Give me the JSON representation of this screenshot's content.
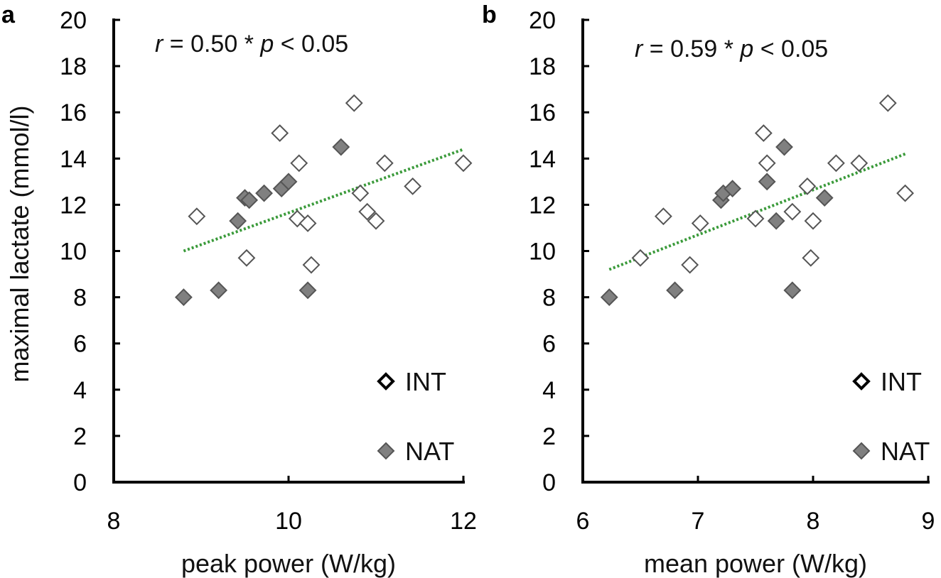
{
  "figure": {
    "ylabel": "maximal lactate (mmol/l)"
  },
  "colors": {
    "axis": "#000000",
    "int_fill": "#ffffff",
    "int_stroke": "#555555",
    "nat_fill": "#808080",
    "nat_stroke": "#555555",
    "trend": "#3a9a3a"
  },
  "legend": {
    "int_label": "INT",
    "nat_label": "NAT"
  },
  "chart_data": [
    {
      "type": "scatter",
      "panel": "a",
      "stat": {
        "r_symbol": "r",
        "r_text": " = 0.50  * ",
        "p_symbol": "p",
        "p_text": " < 0.05"
      },
      "xlabel": "peak power (W/kg)",
      "ylabel": "maximal lactate (mmol/l)",
      "xlim": [
        8,
        12
      ],
      "ylim": [
        0,
        20
      ],
      "xticks": [
        8,
        10,
        12
      ],
      "yticks": [
        0,
        2,
        4,
        6,
        8,
        10,
        12,
        14,
        16,
        18,
        20
      ],
      "series": [
        {
          "name": "INT",
          "marker": "diamond-open",
          "points": [
            [
              8.95,
              11.5
            ],
            [
              9.52,
              9.7
            ],
            [
              9.9,
              15.1
            ],
            [
              10.1,
              11.4
            ],
            [
              10.12,
              13.8
            ],
            [
              10.22,
              11.2
            ],
            [
              10.26,
              9.4
            ],
            [
              10.75,
              16.4
            ],
            [
              10.82,
              12.5
            ],
            [
              10.9,
              11.7
            ],
            [
              11.0,
              11.3
            ],
            [
              11.1,
              13.8
            ],
            [
              11.42,
              12.8
            ],
            [
              12.0,
              13.8
            ]
          ]
        },
        {
          "name": "NAT",
          "marker": "diamond-filled",
          "points": [
            [
              8.8,
              8.0
            ],
            [
              9.2,
              8.3
            ],
            [
              9.42,
              11.3
            ],
            [
              9.5,
              12.3
            ],
            [
              9.55,
              12.2
            ],
            [
              9.72,
              12.5
            ],
            [
              9.92,
              12.7
            ],
            [
              10.0,
              13.0
            ],
            [
              10.22,
              8.3
            ],
            [
              10.6,
              14.5
            ]
          ]
        },
        {
          "name": "trend",
          "line": "dotted",
          "points": [
            [
              8.8,
              10.0
            ],
            [
              12.0,
              14.4
            ]
          ]
        }
      ]
    },
    {
      "type": "scatter",
      "panel": "b",
      "stat": {
        "r_symbol": "r",
        "r_text": " = 0.59  * ",
        "p_symbol": "p",
        "p_text": " < 0.05"
      },
      "xlabel": "mean power (W/kg)",
      "ylabel": "maximal lactate (mmol/l)",
      "xlim": [
        6,
        9
      ],
      "ylim": [
        0,
        20
      ],
      "xticks": [
        6,
        7,
        8,
        9
      ],
      "yticks": [
        0,
        2,
        4,
        6,
        8,
        10,
        12,
        14,
        16,
        18,
        20
      ],
      "series": [
        {
          "name": "INT",
          "marker": "diamond-open",
          "points": [
            [
              6.5,
              9.7
            ],
            [
              6.7,
              11.5
            ],
            [
              6.93,
              9.4
            ],
            [
              7.02,
              11.2
            ],
            [
              7.5,
              11.4
            ],
            [
              7.57,
              15.1
            ],
            [
              7.6,
              13.8
            ],
            [
              7.82,
              11.7
            ],
            [
              7.95,
              12.8
            ],
            [
              7.98,
              9.7
            ],
            [
              8.0,
              11.3
            ],
            [
              8.2,
              13.8
            ],
            [
              8.4,
              13.8
            ],
            [
              8.65,
              16.4
            ],
            [
              8.8,
              12.5
            ]
          ]
        },
        {
          "name": "NAT",
          "marker": "diamond-filled",
          "points": [
            [
              6.23,
              8.0
            ],
            [
              6.8,
              8.3
            ],
            [
              7.2,
              12.2
            ],
            [
              7.22,
              12.5
            ],
            [
              7.3,
              12.7
            ],
            [
              7.6,
              13.0
            ],
            [
              7.68,
              11.3
            ],
            [
              7.75,
              14.5
            ],
            [
              7.82,
              8.3
            ],
            [
              8.1,
              12.3
            ]
          ]
        },
        {
          "name": "trend",
          "line": "dotted",
          "points": [
            [
              6.23,
              9.2
            ],
            [
              8.8,
              14.2
            ]
          ]
        }
      ]
    }
  ]
}
